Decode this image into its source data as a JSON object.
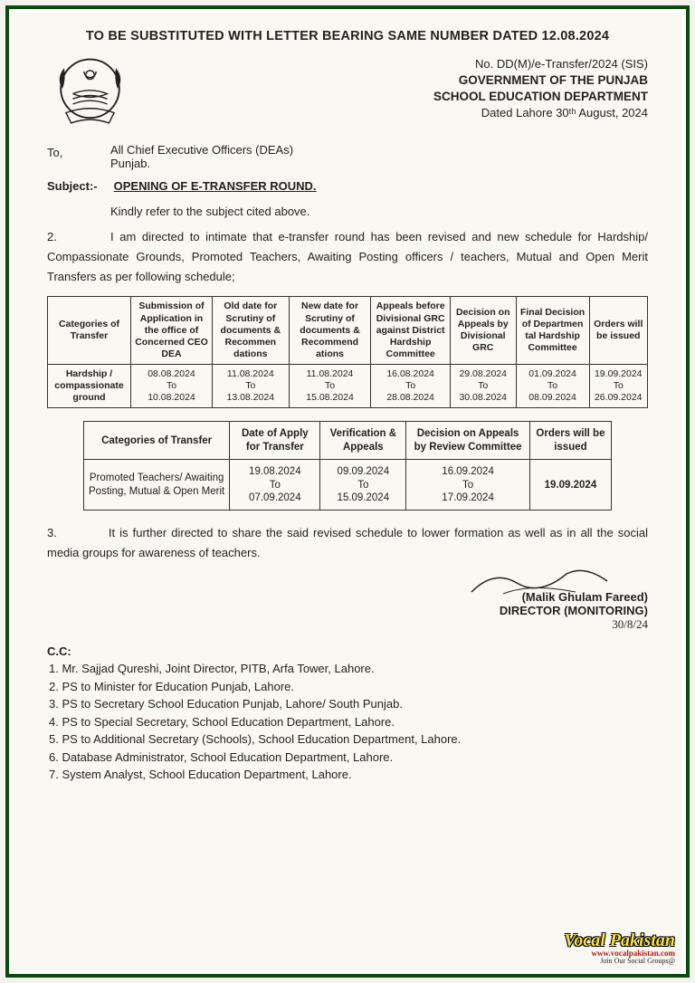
{
  "top_title": "TO BE SUBSTITUTED WITH LETTER BEARING SAME NUMBER DATED  12.08.2024",
  "header": {
    "ref_no": "No. DD(M)/e-Transfer/2024 (SIS)",
    "gov_line": "GOVERNMENT OF THE PUNJAB",
    "dept_line": "SCHOOL EDUCATION DEPARTMENT",
    "date_line": "Dated Lahore  30ᵗʰ  August, 2024"
  },
  "to": {
    "label": "To,",
    "line1": "All Chief Executive Officers (DEAs)",
    "line2": "Punjab."
  },
  "subject": {
    "label": "Subject:-",
    "text": "OPENING OF E-TRANSFER ROUND."
  },
  "para_intro": "Kindly refer to the subject cited above.",
  "para2_num": "2.",
  "para2": "I am directed to intimate that e-transfer round has been revised and new schedule for Hardship/ Compassionate Grounds, Promoted Teachers, Awaiting Posting officers / teachers, Mutual and Open Merit Transfers as per following schedule;",
  "table1": {
    "columns": [
      "Categories of Transfer",
      "Submission of Application in the office of Concerned CEO DEA",
      "Old date for Scrutiny of documents & Recommen dations",
      "New date for Scrutiny of documents & Recommend ations",
      "Appeals before Divisional GRC against District Hardship Committee",
      "Decision on Appeals by Divisional GRC",
      "Final Decision of Departmen tal Hardship Committee",
      "Orders will be issued"
    ],
    "row": {
      "cat": "Hardship / compassionate ground",
      "c1": "08.08.2024\nTo\n10.08.2024",
      "c2": "11.08.2024\nTo\n13.08.2024",
      "c3": "11.08.2024\nTo\n15.08.2024",
      "c4": "16.08.2024\nTo\n28.08.2024",
      "c5": "29.08.2024\nTo\n30.08.2024",
      "c6": "01.09.2024\nTo\n08.09.2024",
      "c7": "19.09.2024\nTo\n26.09.2024"
    }
  },
  "table2": {
    "columns": [
      "Categories of Transfer",
      "Date of Apply for Transfer",
      "Verification & Appeals",
      "Decision on Appeals by Review Committee",
      "Orders will be issued"
    ],
    "row": {
      "cat": "Promoted Teachers/ Awaiting Posting, Mutual & Open Merit",
      "c1": "19.08.2024\nTo\n07.09.2024",
      "c2": "09.09.2024\nTo\n15.09.2024",
      "c3": "16.09.2024\nTo\n17.09.2024",
      "c4": "19.09.2024"
    }
  },
  "para3_num": "3.",
  "para3": "It is further directed to share the said revised schedule to lower formation as well as in all the social media groups for awareness of teachers.",
  "signature": {
    "name": "(Malik Ghulam Fareed)",
    "title": "DIRECTOR (MONITORING)",
    "date": "30/8/24"
  },
  "cc": {
    "label": "C.C:",
    "items": [
      "1. Mr. Sajjad Qureshi, Joint Director, PITB, Arfa Tower, Lahore.",
      "2. PS to Minister for Education Punjab, Lahore.",
      "3. PS to Secretary School Education Punjab, Lahore/ South Punjab.",
      "4. PS to Special Secretary, School Education Department, Lahore.",
      "5. PS to Additional Secretary (Schools), School Education Department, Lahore.",
      "6. Database Administrator, School Education Department, Lahore.",
      "7. System Analyst, School Education Department, Lahore."
    ]
  },
  "watermark": {
    "brand": "Vocal Pakistan",
    "url": "www.vocalpakistan.com",
    "tag": "Join Our Social Groups@"
  },
  "colors": {
    "frame": "#0a4a0a",
    "page_bg": "#faf8f3",
    "text": "#222222",
    "border": "#333333"
  }
}
